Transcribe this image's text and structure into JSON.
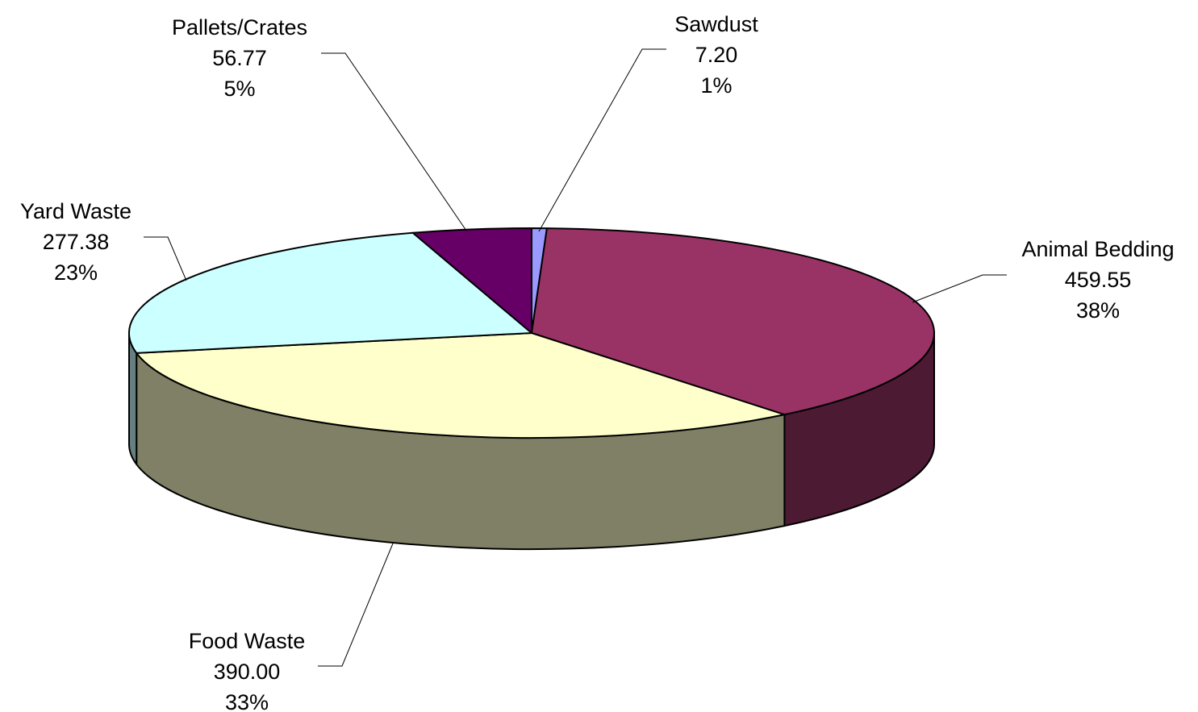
{
  "chart_data": {
    "type": "pie",
    "style": "3d-exploded-none",
    "slices": [
      {
        "label": "Sawdust",
        "value": 7.2,
        "value_text": "7.20",
        "percent_text": "1%",
        "color": "#9999ff",
        "side_color": "#4d4d80"
      },
      {
        "label": "Animal Bedding",
        "value": 459.55,
        "value_text": "459.55",
        "percent_text": "38%",
        "color": "#993366",
        "side_color": "#4d1a33"
      },
      {
        "label": "Food Waste",
        "value": 390.0,
        "value_text": "390.00",
        "percent_text": "33%",
        "color": "#ffffcc",
        "side_color": "#808066"
      },
      {
        "label": "Yard Waste",
        "value": 277.38,
        "value_text": "277.38",
        "percent_text": "23%",
        "color": "#ccffff",
        "side_color": "#668080"
      },
      {
        "label": "Pallets/Crates",
        "value": 56.77,
        "value_text": "56.77",
        "percent_text": "5%",
        "color": "#660066",
        "side_color": "#330033"
      }
    ]
  }
}
